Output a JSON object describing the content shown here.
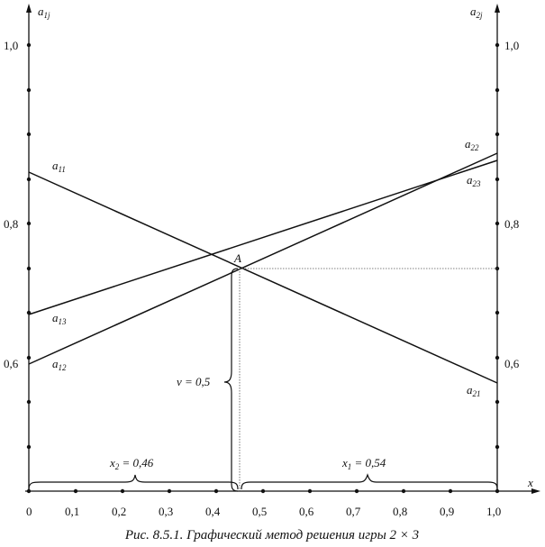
{
  "diagram": {
    "left_axis_label": {
      "base": "a",
      "sub": "1j"
    },
    "right_axis_label": {
      "base": "a",
      "sub": "2j"
    },
    "x_axis_label": "x",
    "y_ticks": [
      "1,0",
      "0,8",
      "0,6"
    ],
    "x_ticks": [
      "0",
      "0,1",
      "0,2",
      "0,3",
      "0,4",
      "0,5",
      "0,6",
      "0,7",
      "0,8",
      "0,9",
      "1,0"
    ],
    "lines": [
      {
        "name": "a11-a21",
        "left": {
          "base": "a",
          "sub": "11"
        },
        "right": {
          "base": "a",
          "sub": "21"
        }
      },
      {
        "name": "a12-a22",
        "left": {
          "base": "a",
          "sub": "12"
        },
        "right": {
          "base": "a",
          "sub": "22"
        }
      },
      {
        "name": "a13-a23",
        "left": {
          "base": "a",
          "sub": "13"
        },
        "right": {
          "base": "a",
          "sub": "23"
        }
      }
    ],
    "point_label": "A",
    "value_label": "v = 0,5",
    "x2_label": {
      "base": "x",
      "sub": "2",
      "rest": " = 0,46"
    },
    "x1_label": {
      "base": "x",
      "sub": "1",
      "rest": " = 0,54"
    }
  },
  "caption": "Рис. 8.5.1. Графический метод решения игры 2 × 3"
}
